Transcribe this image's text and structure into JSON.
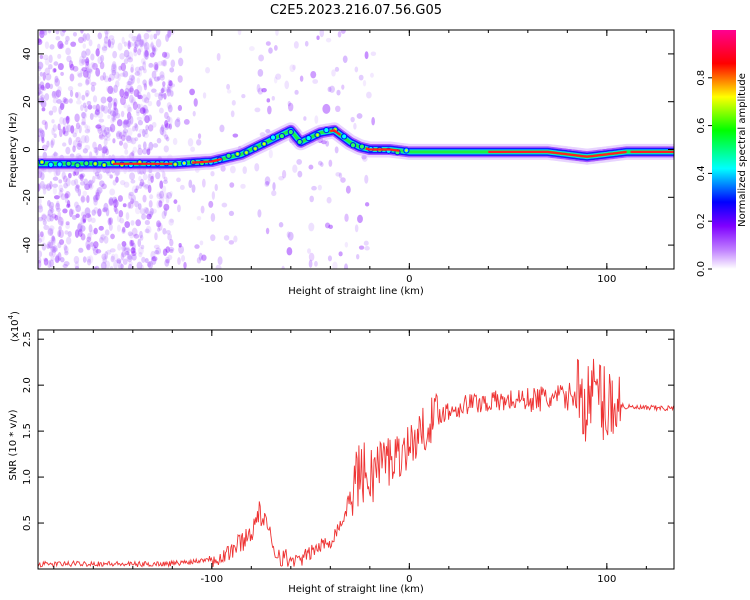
{
  "title": "C2E5.2023.216.07.56.G05",
  "chart_data": [
    {
      "type": "heatmap",
      "name": "spectrogram",
      "xlabel": "Height of straight line (km)",
      "ylabel": "Frequency (Hz)",
      "xlim": [
        -188,
        134
      ],
      "ylim": [
        -50,
        50
      ],
      "xticks": [
        -100,
        0,
        100
      ],
      "xtick_labels": [
        "-100",
        "0",
        "100"
      ],
      "yticks": [
        -40,
        -20,
        0,
        20,
        40
      ],
      "ytick_labels": [
        "-40",
        "-20",
        "0",
        "20",
        "40"
      ],
      "ridge": {
        "x": [
          -188,
          -160,
          -140,
          -120,
          -100,
          -85,
          -70,
          -60,
          -55,
          -45,
          -38,
          -30,
          -25,
          -20,
          -10,
          0,
          20,
          60,
          70,
          80,
          90,
          100,
          110,
          134
        ],
        "y": [
          -6,
          -6,
          -6,
          -6,
          -5,
          -2,
          4,
          8,
          3,
          7,
          8,
          3,
          1,
          0,
          0,
          -1,
          -1,
          -1,
          -1,
          -2,
          -3,
          -2,
          -1,
          -1
        ]
      },
      "colorbar": {
        "label": "Normalized spectral amplitude",
        "range": [
          0,
          1
        ],
        "ticks": [
          0.0,
          0.2,
          0.4,
          0.6,
          0.8
        ],
        "tick_labels": [
          "0.0",
          "0.2",
          "0.4",
          "0.6",
          "0.8"
        ],
        "colors": [
          "#ffffff",
          "#7f00ff",
          "#0000ff",
          "#00ffff",
          "#00ff00",
          "#ffff00",
          "#ff0000",
          "#ff00a0"
        ]
      }
    },
    {
      "type": "line",
      "name": "snr",
      "xlabel": "Height of straight line (km)",
      "ylabel": "SNR (10 * v/v)",
      "yscale_label": "(x10",
      "yscale_exp": "4",
      "yscale_close": ")",
      "xlim": [
        -188,
        134
      ],
      "ylim": [
        0,
        2.6
      ],
      "xticks": [
        -100,
        0,
        100
      ],
      "xtick_labels": [
        "-100",
        "0",
        "100"
      ],
      "yticks": [
        0.5,
        1.0,
        1.5,
        2.0,
        2.5
      ],
      "ytick_labels": [
        "0.5",
        "1.0",
        "1.5",
        "2.0",
        "2.5"
      ],
      "color": "#ee3333",
      "series": {
        "x": [
          -188,
          -160,
          -140,
          -120,
          -110,
          -100,
          -95,
          -90,
          -85,
          -80,
          -76,
          -72,
          -68,
          -65,
          -62,
          -58,
          -55,
          -50,
          -45,
          -40,
          -36,
          -33,
          -30,
          -27,
          -24,
          -20,
          -15,
          -10,
          -5,
          0,
          5,
          10,
          15,
          20,
          30,
          40,
          50,
          60,
          70,
          80,
          85,
          90,
          95,
          100,
          103,
          106,
          110,
          120,
          134
        ],
        "y": [
          0.05,
          0.06,
          0.05,
          0.06,
          0.08,
          0.12,
          0.15,
          0.2,
          0.3,
          0.4,
          0.62,
          0.45,
          0.2,
          0.15,
          0.1,
          0.08,
          0.1,
          0.18,
          0.25,
          0.3,
          0.45,
          0.55,
          0.8,
          1.0,
          1.05,
          1.0,
          1.15,
          1.2,
          1.25,
          1.35,
          1.45,
          1.6,
          1.7,
          1.72,
          1.8,
          1.82,
          1.83,
          1.85,
          1.85,
          1.87,
          1.9,
          1.8,
          1.95,
          1.75,
          1.85,
          1.8,
          1.76,
          1.75,
          1.75
        ]
      }
    }
  ]
}
